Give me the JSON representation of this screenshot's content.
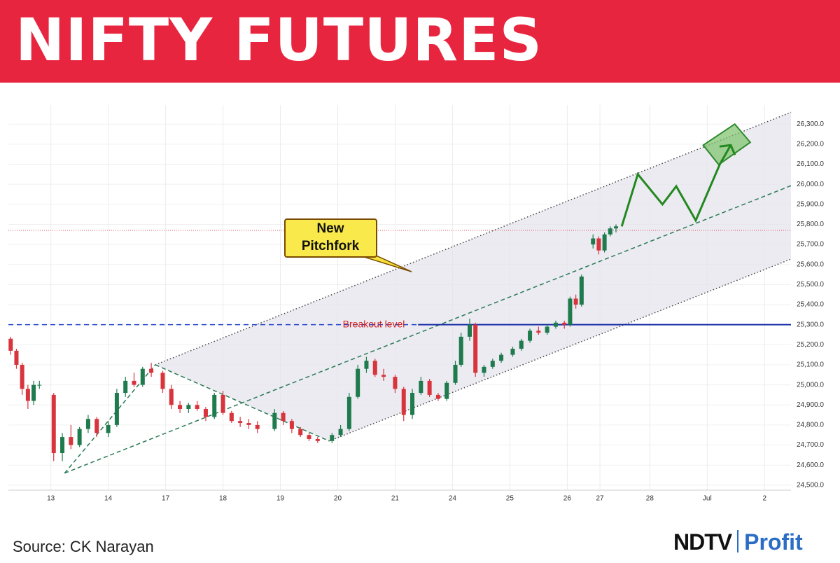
{
  "header": {
    "title": "NIFTY FUTURES"
  },
  "chart_data": {
    "type": "candlestick",
    "up_color": "#1f7a4d",
    "down_color": "#d8343d",
    "grid": true,
    "xlim": [
      0.26,
      13.9
    ],
    "ylim": [
      24475,
      26395
    ],
    "xticks": [
      {
        "value": 1,
        "label": "13"
      },
      {
        "value": 2,
        "label": "14"
      },
      {
        "value": 3,
        "label": "17"
      },
      {
        "value": 4,
        "label": "18"
      },
      {
        "value": 5,
        "label": "19"
      },
      {
        "value": 6,
        "label": "20"
      },
      {
        "value": 7,
        "label": "21"
      },
      {
        "value": 8,
        "label": "24"
      },
      {
        "value": 9,
        "label": "25"
      },
      {
        "value": 10,
        "label": "26"
      },
      {
        "value": 10.57,
        "label": "27"
      },
      {
        "value": 11.44,
        "label": "28"
      },
      {
        "value": 12.44,
        "label": "Jul"
      },
      {
        "value": 13.44,
        "label": "2"
      }
    ],
    "yticks": [
      {
        "value": 24500,
        "label": "24,500.0"
      },
      {
        "value": 24600,
        "label": "24,600.0"
      },
      {
        "value": 24700,
        "label": "24,700.0"
      },
      {
        "value": 24800,
        "label": "24,800.0"
      },
      {
        "value": 24900,
        "label": "24,900.0"
      },
      {
        "value": 25000,
        "label": "25,000.0"
      },
      {
        "value": 25100,
        "label": "25,100.0"
      },
      {
        "value": 25200,
        "label": "25,200.0"
      },
      {
        "value": 25300,
        "label": "25,300.0"
      },
      {
        "value": 25400,
        "label": "25,400.0"
      },
      {
        "value": 25500,
        "label": "25,500.0"
      },
      {
        "value": 25600,
        "label": "25,600.0"
      },
      {
        "value": 25700,
        "label": "25,700.0"
      },
      {
        "value": 25800,
        "label": "25,800.0"
      },
      {
        "value": 25900,
        "label": "25,900.0"
      },
      {
        "value": 26000,
        "label": "26,000.0"
      },
      {
        "value": 26100,
        "label": "26,100.0"
      },
      {
        "value": 26200,
        "label": "26,200.0"
      },
      {
        "value": 26300,
        "label": "26,300.0"
      }
    ],
    "x": [
      0.3,
      0.4,
      0.5,
      0.6,
      0.7,
      0.8,
      1.05,
      1.2,
      1.35,
      1.5,
      1.65,
      1.8,
      2.0,
      2.15,
      2.3,
      2.45,
      2.6,
      2.75,
      2.95,
      3.1,
      3.25,
      3.4,
      3.55,
      3.7,
      3.85,
      4.0,
      4.15,
      4.3,
      4.45,
      4.6,
      4.9,
      5.05,
      5.2,
      5.35,
      5.5,
      5.65,
      5.9,
      6.05,
      6.2,
      6.35,
      6.5,
      6.65,
      6.8,
      7.0,
      7.15,
      7.3,
      7.45,
      7.6,
      7.75,
      7.9,
      8.05,
      8.15,
      8.3,
      8.4,
      8.55,
      8.7,
      8.85,
      9.05,
      9.2,
      9.35,
      9.5,
      9.65,
      9.8,
      9.95,
      10.05,
      10.15,
      10.25,
      10.45,
      10.55,
      10.65,
      10.75,
      10.85
    ],
    "open": [
      25230,
      25170,
      25100,
      24980,
      24920,
      25000,
      24950,
      24660,
      24740,
      24700,
      24780,
      24830,
      24760,
      24800,
      24960,
      25020,
      25000,
      25080,
      25060,
      24980,
      24900,
      24880,
      24900,
      24880,
      24840,
      24950,
      24860,
      24820,
      24810,
      24800,
      24780,
      24860,
      24820,
      24780,
      24750,
      24730,
      24720,
      24750,
      24780,
      24940,
      25080,
      25120,
      25050,
      25040,
      24980,
      24850,
      24960,
      25020,
      24950,
      24930,
      25010,
      25100,
      25240,
      25300,
      25060,
      25090,
      25120,
      25150,
      25180,
      25220,
      25270,
      25260,
      25290,
      25310,
      25300,
      25430,
      25400,
      25700,
      25730,
      25670,
      25750,
      25780
    ],
    "high": [
      25240,
      25180,
      25110,
      25000,
      25020,
      25020,
      24960,
      24760,
      24800,
      24790,
      24850,
      24840,
      24820,
      24980,
      25040,
      25060,
      25090,
      25110,
      25070,
      25000,
      24920,
      24910,
      24920,
      24890,
      24960,
      24970,
      24870,
      24840,
      24830,
      24820,
      24880,
      24870,
      24830,
      24790,
      24760,
      24740,
      24760,
      24800,
      24960,
      25100,
      25140,
      25130,
      25080,
      25050,
      24990,
      24980,
      25040,
      25030,
      24960,
      25020,
      25120,
      25260,
      25330,
      25310,
      25100,
      25130,
      25160,
      25190,
      25230,
      25280,
      25290,
      25300,
      25320,
      25320,
      25440,
      25450,
      25550,
      25750,
      25740,
      25760,
      25790,
      25800
    ],
    "low": [
      25150,
      25080,
      24950,
      24880,
      24900,
      24980,
      24620,
      24620,
      24680,
      24690,
      24760,
      24740,
      24740,
      24790,
      24940,
      24990,
      24990,
      25040,
      24960,
      24880,
      24860,
      24860,
      24870,
      24820,
      24830,
      24850,
      24810,
      24790,
      24780,
      24760,
      24770,
      24800,
      24760,
      24740,
      24720,
      24710,
      24710,
      24740,
      24770,
      24930,
      25060,
      25040,
      25020,
      24960,
      24820,
      24830,
      24950,
      24940,
      24920,
      24920,
      25000,
      25090,
      25220,
      25040,
      25040,
      25080,
      25110,
      25140,
      25170,
      25210,
      25250,
      25250,
      25280,
      25280,
      25290,
      25380,
      25390,
      25680,
      25650,
      25660,
      25740,
      25760
    ],
    "close": [
      25170,
      25100,
      24980,
      24920,
      25000,
      25000,
      24660,
      24740,
      24700,
      24780,
      24830,
      24760,
      24800,
      24960,
      25020,
      25000,
      25080,
      25060,
      24980,
      24900,
      24880,
      24900,
      24880,
      24840,
      24950,
      24860,
      24820,
      24810,
      24800,
      24780,
      24860,
      24820,
      24780,
      24750,
      24730,
      24720,
      24750,
      24780,
      24940,
      25080,
      25120,
      25050,
      25040,
      24980,
      24850,
      24960,
      25020,
      24950,
      24930,
      25010,
      25100,
      25240,
      25300,
      25060,
      25090,
      25120,
      25150,
      25180,
      25220,
      25270,
      25260,
      25290,
      25310,
      25300,
      25430,
      25400,
      25540,
      25730,
      25670,
      25750,
      25780,
      25790
    ],
    "pitchfork": {
      "upper": [
        [
          2.82,
          25100
        ],
        [
          13.9,
          26359
        ]
      ],
      "median": [
        [
          1.24,
          24560
        ],
        [
          13.9,
          25993
        ]
      ],
      "lower": [
        [
          5.85,
          24720
        ],
        [
          13.9,
          25627
        ]
      ],
      "handle_a": [
        [
          1.24,
          24560
        ],
        [
          2.82,
          25100
        ]
      ],
      "handle_b": [
        [
          2.82,
          25100
        ],
        [
          5.85,
          24720
        ]
      ]
    },
    "breakout": {
      "value": 25300,
      "label": "Breakout level",
      "solid_from": 7.4
    },
    "resistance": {
      "value": 25770
    },
    "projection": [
      [
        10.95,
        25790
      ],
      [
        11.23,
        26050
      ],
      [
        11.66,
        25900
      ],
      [
        11.9,
        25990
      ],
      [
        12.24,
        25820
      ],
      [
        12.66,
        26100
      ],
      [
        12.85,
        26195
      ]
    ],
    "target_zone": [
      [
        12.37,
        26195
      ],
      [
        12.92,
        26300
      ],
      [
        13.19,
        26209
      ],
      [
        12.64,
        26098
      ]
    ],
    "callout": [
      "New",
      "Pitchfork"
    ]
  },
  "footer": {
    "source": "Source: CK Narayan",
    "logo_a": "NDTV",
    "logo_b": "Profit"
  }
}
